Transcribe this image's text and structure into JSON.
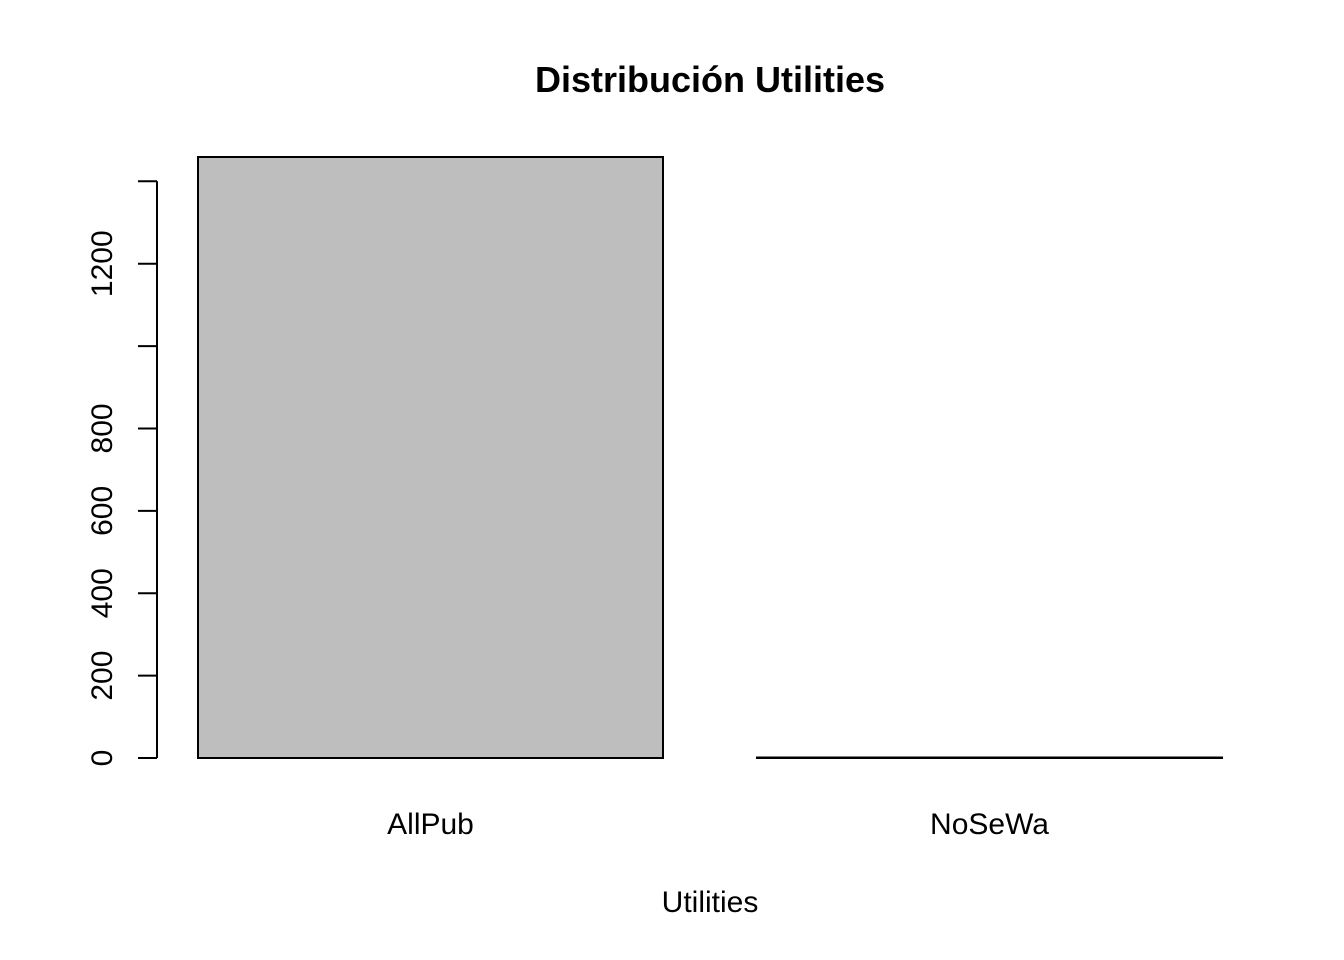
{
  "chart_data": {
    "type": "bar",
    "title": "Distribución Utilities",
    "xlabel": "Utilities",
    "ylabel": "",
    "categories": [
      "AllPub",
      "NoSeWa"
    ],
    "values": [
      1459,
      1
    ],
    "ylim": [
      0,
      1459
    ],
    "yticks": [
      0,
      200,
      400,
      600,
      800,
      1000,
      1200,
      1400
    ],
    "ytick_labels": [
      "0",
      "200",
      "400",
      "600",
      "800",
      "",
      "1200",
      ""
    ],
    "grid": false,
    "legend": "none",
    "colors": {
      "bar_fill": "#bebebe",
      "bar_stroke": "#000000",
      "background": "#ffffff",
      "text": "#000000"
    }
  }
}
